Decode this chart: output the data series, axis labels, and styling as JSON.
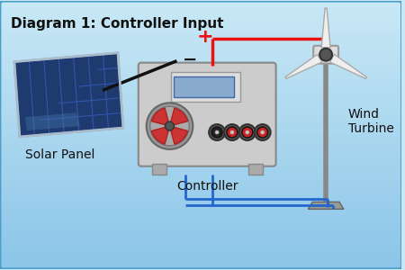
{
  "title": "Diagram 1: Controller Input",
  "bg_color_top": "#c8e8f5",
  "bg_color_bottom": "#8ac4e8",
  "border_color": "#4a9eca",
  "label_solar": "Solar Panel",
  "label_controller": "Controller",
  "label_wind": "Wind\nTurbine",
  "plus_label": "+",
  "minus_label": "−",
  "wire_red": "#ee1111",
  "wire_blue": "#2266cc",
  "wire_black": "#111111",
  "title_fontsize": 11,
  "label_fontsize": 10
}
